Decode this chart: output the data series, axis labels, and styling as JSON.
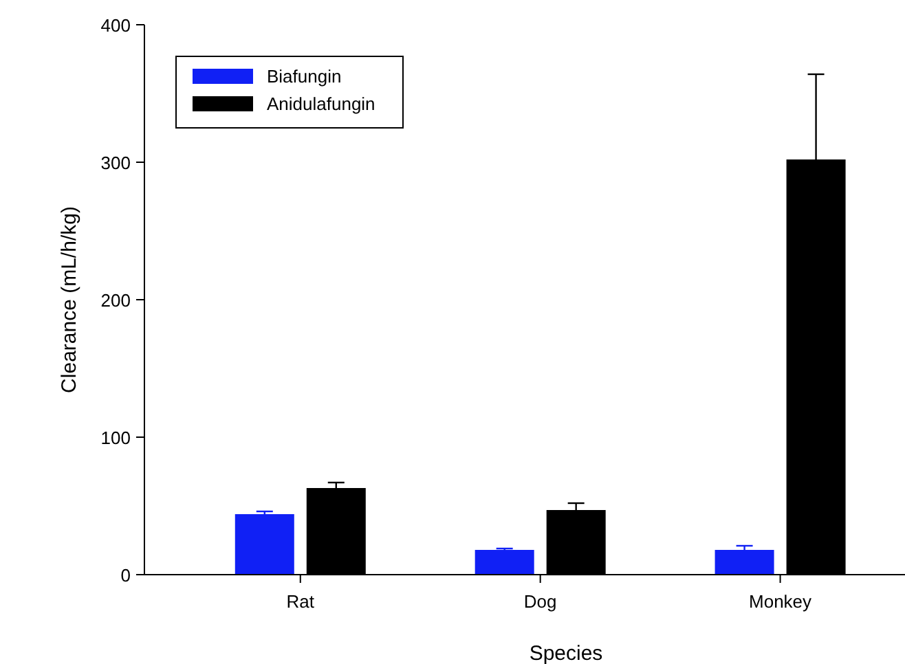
{
  "chart_data": {
    "type": "bar",
    "xlabel": "Species",
    "ylabel": "Clearance (mL/h/kg)",
    "categories": [
      "Rat",
      "Dog",
      "Monkey"
    ],
    "series": [
      {
        "name": "Biafungin",
        "color": "#1020f5",
        "values": [
          44,
          18,
          18
        ],
        "errors": [
          2,
          1,
          3
        ]
      },
      {
        "name": "Anidulafungin",
        "color": "#000000",
        "values": [
          63,
          47,
          302
        ],
        "errors": [
          4,
          5,
          62
        ]
      }
    ],
    "ylim": [
      0,
      400
    ],
    "yticks": [
      0,
      100,
      200,
      300,
      400
    ],
    "legend": "top left"
  }
}
